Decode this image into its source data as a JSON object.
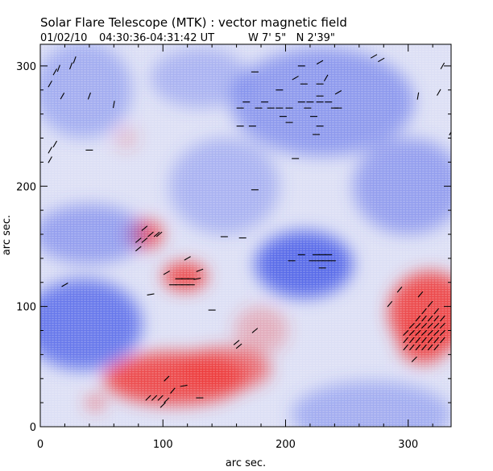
{
  "title": "Solar Flare Telescope (MTK) : vector magnetic field",
  "subtitle_date": "01/02/10",
  "subtitle_time": "04:30:36-04:31:42 UT",
  "subtitle_coords": "W 7' 5\"   N 2'39\"",
  "chart_data": {
    "type": "heatmap",
    "title": "Solar Flare Telescope (MTK) : vector magnetic field",
    "xlabel": "arc sec.",
    "ylabel": "arc sec.",
    "xlim": [
      0,
      335
    ],
    "ylim": [
      0,
      318
    ],
    "xticks": [
      0,
      100,
      200,
      300
    ],
    "yticks": [
      0,
      100,
      200,
      300
    ],
    "colors": {
      "positive": "#ee3b3b",
      "negative": "#4a5ee8",
      "vector": "#000000"
    },
    "polarity_regions": [
      {
        "polarity": "positive",
        "x": 110,
        "y": 40,
        "rx": 58,
        "ry": 22,
        "strength": 0.9
      },
      {
        "polarity": "positive",
        "x": 150,
        "y": 48,
        "rx": 38,
        "ry": 18,
        "strength": 0.7
      },
      {
        "polarity": "positive",
        "x": 318,
        "y": 95,
        "rx": 34,
        "ry": 34,
        "strength": 0.9
      },
      {
        "polarity": "positive",
        "x": 312,
        "y": 70,
        "rx": 20,
        "ry": 18,
        "strength": 0.8
      },
      {
        "polarity": "positive",
        "x": 118,
        "y": 125,
        "rx": 18,
        "ry": 12,
        "strength": 0.9
      },
      {
        "polarity": "positive",
        "x": 86,
        "y": 160,
        "rx": 14,
        "ry": 12,
        "strength": 0.85
      },
      {
        "polarity": "positive",
        "x": 45,
        "y": 20,
        "rx": 8,
        "ry": 6,
        "strength": 0.6
      },
      {
        "polarity": "positive",
        "x": 70,
        "y": 240,
        "rx": 10,
        "ry": 10,
        "strength": 0.2
      },
      {
        "polarity": "positive",
        "x": 180,
        "y": 80,
        "rx": 22,
        "ry": 20,
        "strength": 0.3
      },
      {
        "polarity": "negative",
        "x": 35,
        "y": 85,
        "rx": 48,
        "ry": 38,
        "strength": 0.8
      },
      {
        "polarity": "negative",
        "x": 215,
        "y": 135,
        "rx": 40,
        "ry": 28,
        "strength": 0.9
      },
      {
        "polarity": "negative",
        "x": 40,
        "y": 160,
        "rx": 45,
        "ry": 25,
        "strength": 0.5
      },
      {
        "polarity": "negative",
        "x": 230,
        "y": 270,
        "rx": 75,
        "ry": 45,
        "strength": 0.55
      },
      {
        "polarity": "negative",
        "x": 35,
        "y": 280,
        "rx": 40,
        "ry": 40,
        "strength": 0.4
      },
      {
        "polarity": "negative",
        "x": 150,
        "y": 200,
        "rx": 45,
        "ry": 40,
        "strength": 0.35
      },
      {
        "polarity": "negative",
        "x": 300,
        "y": 200,
        "rx": 45,
        "ry": 40,
        "strength": 0.5
      },
      {
        "polarity": "negative",
        "x": 270,
        "y": 10,
        "rx": 65,
        "ry": 28,
        "strength": 0.4
      },
      {
        "polarity": "negative",
        "x": 130,
        "y": 290,
        "rx": 40,
        "ry": 25,
        "strength": 0.35
      }
    ],
    "vectors": [
      {
        "x": 88,
        "y": 24,
        "angle": 45
      },
      {
        "x": 93,
        "y": 24,
        "angle": 45
      },
      {
        "x": 98,
        "y": 24,
        "angle": 45
      },
      {
        "x": 103,
        "y": 22,
        "angle": 45
      },
      {
        "x": 108,
        "y": 30,
        "angle": 50
      },
      {
        "x": 117,
        "y": 34,
        "angle": 10
      },
      {
        "x": 130,
        "y": 24,
        "angle": 0
      },
      {
        "x": 103,
        "y": 40,
        "angle": 45
      },
      {
        "x": 100,
        "y": 18,
        "angle": 45
      },
      {
        "x": 298,
        "y": 66,
        "angle": 50
      },
      {
        "x": 303,
        "y": 66,
        "angle": 50
      },
      {
        "x": 308,
        "y": 66,
        "angle": 50
      },
      {
        "x": 313,
        "y": 66,
        "angle": 50
      },
      {
        "x": 318,
        "y": 66,
        "angle": 50
      },
      {
        "x": 323,
        "y": 66,
        "angle": 50
      },
      {
        "x": 298,
        "y": 72,
        "angle": 50
      },
      {
        "x": 303,
        "y": 72,
        "angle": 50
      },
      {
        "x": 308,
        "y": 72,
        "angle": 50
      },
      {
        "x": 313,
        "y": 72,
        "angle": 50
      },
      {
        "x": 318,
        "y": 72,
        "angle": 50
      },
      {
        "x": 323,
        "y": 72,
        "angle": 50
      },
      {
        "x": 298,
        "y": 78,
        "angle": 45
      },
      {
        "x": 303,
        "y": 78,
        "angle": 45
      },
      {
        "x": 308,
        "y": 78,
        "angle": 45
      },
      {
        "x": 313,
        "y": 78,
        "angle": 45
      },
      {
        "x": 318,
        "y": 78,
        "angle": 45
      },
      {
        "x": 323,
        "y": 78,
        "angle": 45
      },
      {
        "x": 328,
        "y": 78,
        "angle": 45
      },
      {
        "x": 303,
        "y": 84,
        "angle": 45
      },
      {
        "x": 308,
        "y": 84,
        "angle": 45
      },
      {
        "x": 313,
        "y": 84,
        "angle": 45
      },
      {
        "x": 318,
        "y": 84,
        "angle": 45
      },
      {
        "x": 323,
        "y": 84,
        "angle": 45
      },
      {
        "x": 328,
        "y": 84,
        "angle": 45
      },
      {
        "x": 308,
        "y": 90,
        "angle": 50
      },
      {
        "x": 313,
        "y": 90,
        "angle": 50
      },
      {
        "x": 318,
        "y": 90,
        "angle": 50
      },
      {
        "x": 323,
        "y": 90,
        "angle": 50
      },
      {
        "x": 328,
        "y": 90,
        "angle": 50
      },
      {
        "x": 313,
        "y": 96,
        "angle": 50
      },
      {
        "x": 323,
        "y": 96,
        "angle": 50
      },
      {
        "x": 318,
        "y": 102,
        "angle": 50
      },
      {
        "x": 305,
        "y": 56,
        "angle": 45
      },
      {
        "x": 310,
        "y": 110,
        "angle": 50
      },
      {
        "x": 293,
        "y": 114,
        "angle": 50
      },
      {
        "x": 285,
        "y": 102,
        "angle": 50
      },
      {
        "x": 328,
        "y": 72,
        "angle": 50
      },
      {
        "x": 108,
        "y": 118,
        "angle": 0
      },
      {
        "x": 113,
        "y": 118,
        "angle": 0
      },
      {
        "x": 118,
        "y": 118,
        "angle": 0
      },
      {
        "x": 123,
        "y": 118,
        "angle": 0
      },
      {
        "x": 113,
        "y": 123,
        "angle": 0
      },
      {
        "x": 118,
        "y": 123,
        "angle": 0
      },
      {
        "x": 123,
        "y": 123,
        "angle": 0
      },
      {
        "x": 128,
        "y": 123,
        "angle": 10
      },
      {
        "x": 130,
        "y": 130,
        "angle": 20
      },
      {
        "x": 120,
        "y": 140,
        "angle": 30
      },
      {
        "x": 103,
        "y": 128,
        "angle": 30
      },
      {
        "x": 90,
        "y": 110,
        "angle": 10
      },
      {
        "x": 80,
        "y": 155,
        "angle": 40
      },
      {
        "x": 85,
        "y": 155,
        "angle": 40
      },
      {
        "x": 90,
        "y": 160,
        "angle": 40
      },
      {
        "x": 95,
        "y": 160,
        "angle": 40
      },
      {
        "x": 85,
        "y": 165,
        "angle": 40
      },
      {
        "x": 80,
        "y": 148,
        "angle": 40
      },
      {
        "x": 97,
        "y": 160,
        "angle": 40
      },
      {
        "x": 205,
        "y": 138,
        "angle": 0
      },
      {
        "x": 213,
        "y": 143,
        "angle": 0
      },
      {
        "x": 222,
        "y": 138,
        "angle": 0
      },
      {
        "x": 228,
        "y": 138,
        "angle": 0
      },
      {
        "x": 233,
        "y": 138,
        "angle": 0
      },
      {
        "x": 238,
        "y": 138,
        "angle": 0
      },
      {
        "x": 225,
        "y": 143,
        "angle": 0
      },
      {
        "x": 230,
        "y": 143,
        "angle": 0
      },
      {
        "x": 235,
        "y": 143,
        "angle": 0
      },
      {
        "x": 230,
        "y": 132,
        "angle": 0
      },
      {
        "x": 163,
        "y": 265,
        "angle": 0
      },
      {
        "x": 168,
        "y": 270,
        "angle": 0
      },
      {
        "x": 178,
        "y": 265,
        "angle": 0
      },
      {
        "x": 188,
        "y": 265,
        "angle": 0
      },
      {
        "x": 195,
        "y": 265,
        "angle": 0
      },
      {
        "x": 203,
        "y": 265,
        "angle": 0
      },
      {
        "x": 213,
        "y": 270,
        "angle": 0
      },
      {
        "x": 220,
        "y": 270,
        "angle": 0
      },
      {
        "x": 228,
        "y": 270,
        "angle": 0
      },
      {
        "x": 235,
        "y": 270,
        "angle": 0
      },
      {
        "x": 243,
        "y": 265,
        "angle": 0
      },
      {
        "x": 218,
        "y": 265,
        "angle": 0
      },
      {
        "x": 223,
        "y": 258,
        "angle": 0
      },
      {
        "x": 198,
        "y": 258,
        "angle": 0
      },
      {
        "x": 203,
        "y": 253,
        "angle": 0
      },
      {
        "x": 183,
        "y": 270,
        "angle": 0
      },
      {
        "x": 240,
        "y": 265,
        "angle": 0
      },
      {
        "x": 228,
        "y": 250,
        "angle": 0
      },
      {
        "x": 173,
        "y": 250,
        "angle": 0
      },
      {
        "x": 163,
        "y": 250,
        "angle": 0
      },
      {
        "x": 225,
        "y": 243,
        "angle": 0
      },
      {
        "x": 208,
        "y": 290,
        "angle": 30
      },
      {
        "x": 228,
        "y": 285,
        "angle": 0
      },
      {
        "x": 228,
        "y": 275,
        "angle": 0
      },
      {
        "x": 215,
        "y": 285,
        "angle": 0
      },
      {
        "x": 195,
        "y": 280,
        "angle": 0
      },
      {
        "x": 175,
        "y": 295,
        "angle": 0
      },
      {
        "x": 213,
        "y": 300,
        "angle": 0
      },
      {
        "x": 228,
        "y": 303,
        "angle": 30
      },
      {
        "x": 243,
        "y": 278,
        "angle": 30
      },
      {
        "x": 233,
        "y": 290,
        "angle": 60
      },
      {
        "x": 208,
        "y": 223,
        "angle": 0
      },
      {
        "x": 175,
        "y": 197,
        "angle": 0
      },
      {
        "x": 165,
        "y": 157,
        "angle": 0
      },
      {
        "x": 150,
        "y": 158,
        "angle": 0
      },
      {
        "x": 25,
        "y": 300,
        "angle": 70
      },
      {
        "x": 28,
        "y": 305,
        "angle": 70
      },
      {
        "x": 15,
        "y": 298,
        "angle": 70
      },
      {
        "x": 12,
        "y": 295,
        "angle": 60
      },
      {
        "x": 8,
        "y": 285,
        "angle": 60
      },
      {
        "x": 8,
        "y": 230,
        "angle": 60
      },
      {
        "x": 12,
        "y": 235,
        "angle": 60
      },
      {
        "x": 8,
        "y": 222,
        "angle": 60
      },
      {
        "x": 18,
        "y": 275,
        "angle": 60
      },
      {
        "x": 60,
        "y": 268,
        "angle": 80
      },
      {
        "x": 40,
        "y": 275,
        "angle": 70
      },
      {
        "x": 20,
        "y": 118,
        "angle": 30
      },
      {
        "x": 40,
        "y": 230,
        "angle": 0
      },
      {
        "x": 272,
        "y": 308,
        "angle": 30
      },
      {
        "x": 278,
        "y": 305,
        "angle": 30
      },
      {
        "x": 325,
        "y": 278,
        "angle": 60
      },
      {
        "x": 328,
        "y": 300,
        "angle": 60
      },
      {
        "x": 335,
        "y": 245,
        "angle": 60
      },
      {
        "x": 308,
        "y": 275,
        "angle": 80
      },
      {
        "x": 160,
        "y": 70,
        "angle": 40
      },
      {
        "x": 162,
        "y": 67,
        "angle": 40
      },
      {
        "x": 140,
        "y": 97,
        "angle": 0
      },
      {
        "x": 175,
        "y": 80,
        "angle": 40
      }
    ]
  }
}
